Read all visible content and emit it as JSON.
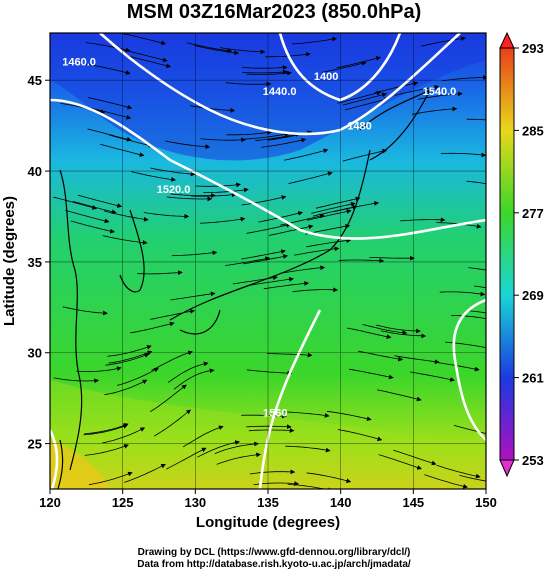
{
  "title": "MSM 03Z16Mar2023 (850.0hPa)",
  "map": {
    "lon_range": [
      120,
      150
    ],
    "lat_range": [
      22.5,
      47.6
    ],
    "x_ticks": [
      "120",
      "125",
      "130",
      "135",
      "140",
      "145",
      "150"
    ],
    "x_tick_values": [
      120,
      125,
      130,
      135,
      140,
      145,
      150
    ],
    "y_ticks": [
      "25",
      "30",
      "35",
      "40",
      "45"
    ],
    "y_tick_values": [
      25,
      30,
      35,
      40,
      45
    ],
    "xlabel": "Longitude (degrees)",
    "ylabel": "Latitude  (degrees)",
    "grid": true,
    "contour_labels": [
      {
        "text": "1460.0",
        "lon": 122.0,
        "lat": 45.8
      },
      {
        "text": "1440.0",
        "lon": 135.8,
        "lat": 44.2
      },
      {
        "text": "1400",
        "lon": 139.0,
        "lat": 45.0
      },
      {
        "text": "1520.0",
        "lon": 128.5,
        "lat": 38.8
      },
      {
        "text": "1480",
        "lon": 141.3,
        "lat": 42.3
      },
      {
        "text": "1540.0",
        "lon": 146.8,
        "lat": 44.2
      },
      {
        "text": "1560",
        "lon": 135.5,
        "lat": 26.5
      }
    ]
  },
  "colorbar": {
    "tick_labels": [
      "293",
      "285",
      "277",
      "269",
      "261",
      "253"
    ],
    "tick_values": [
      293,
      285,
      277,
      269,
      261,
      253
    ],
    "colors": {
      "max": "#ff2020",
      "293": "#e8401a",
      "289": "#f08a1a",
      "285": "#e8d81a",
      "281": "#b8e81a",
      "277": "#3cd62a",
      "273": "#22d870",
      "269": "#1ad6d6",
      "265": "#1a8ee8",
      "261": "#1a3ae0",
      "257": "#2a12b8",
      "253": "#b010c0",
      "min": "#e030d0"
    }
  },
  "credits": {
    "line1": "Drawing by DCL (https://www.gfd-dennou.org/library/dcl/)",
    "line2": "Data from http://database.rish.kyoto-u.ac.jp/arch/jmadata/"
  }
}
